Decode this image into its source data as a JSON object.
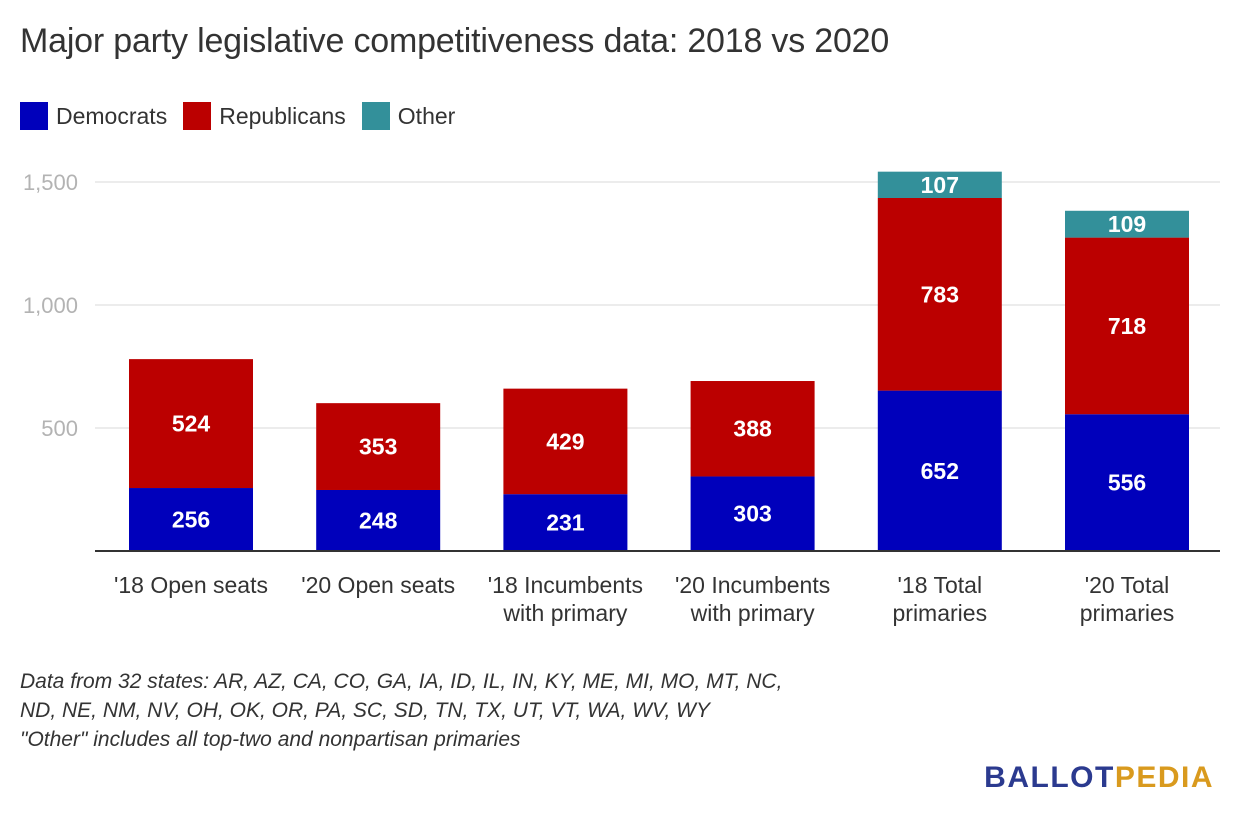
{
  "title": "Major party legislative competitiveness data: 2018 vs 2020",
  "legend": [
    {
      "label": "Democrats",
      "color": "#0000bb"
    },
    {
      "label": "Republicans",
      "color": "#bb0000"
    },
    {
      "label": "Other",
      "color": "#33909a"
    }
  ],
  "chart_data": {
    "type": "bar",
    "stacked": true,
    "title": "Major party legislative competitiveness data: 2018 vs 2020",
    "xlabel": "",
    "ylabel": "",
    "ylim": [
      0,
      1500
    ],
    "yticks": [
      500,
      1000,
      1500
    ],
    "ytick_labels": [
      "500",
      "1,000",
      "1,500"
    ],
    "grid": true,
    "legend_position": "top-left",
    "categories": [
      [
        "'18 Open seats"
      ],
      [
        "'20 Open seats"
      ],
      [
        "'18 Incumbents",
        "with primary"
      ],
      [
        "'20 Incumbents",
        "with primary"
      ],
      [
        "'18 Total",
        "primaries"
      ],
      [
        "'20 Total",
        "primaries"
      ]
    ],
    "series": [
      {
        "name": "Democrats",
        "color": "#0000bb",
        "values": [
          256,
          248,
          231,
          303,
          652,
          556
        ]
      },
      {
        "name": "Republicans",
        "color": "#bb0000",
        "values": [
          524,
          353,
          429,
          388,
          783,
          718
        ]
      },
      {
        "name": "Other",
        "color": "#33909a",
        "values": [
          null,
          null,
          null,
          null,
          107,
          109
        ]
      }
    ]
  },
  "footnote": [
    "Data from 32 states: AR, AZ, CA, CO, GA, IA, ID, IL, IN, KY, ME, MI, MO, MT, NC,",
    "ND, NE, NM, NV, OH, OK, OR, PA, SC, SD, TN, TX, UT, VT, WA, WV, WY",
    "\"Other\" includes all top-two and nonpartisan primaries"
  ],
  "logo": {
    "part1": "BALLOT",
    "part2": "PEDIA",
    "color1": "#2b3a8f",
    "color2": "#d99a1e"
  },
  "colors": {
    "grid": "#e6e6e6",
    "axis": "#333333",
    "tick_label": "#b3b3b3",
    "category_label": "#333333",
    "bar_label": "#ffffff"
  }
}
